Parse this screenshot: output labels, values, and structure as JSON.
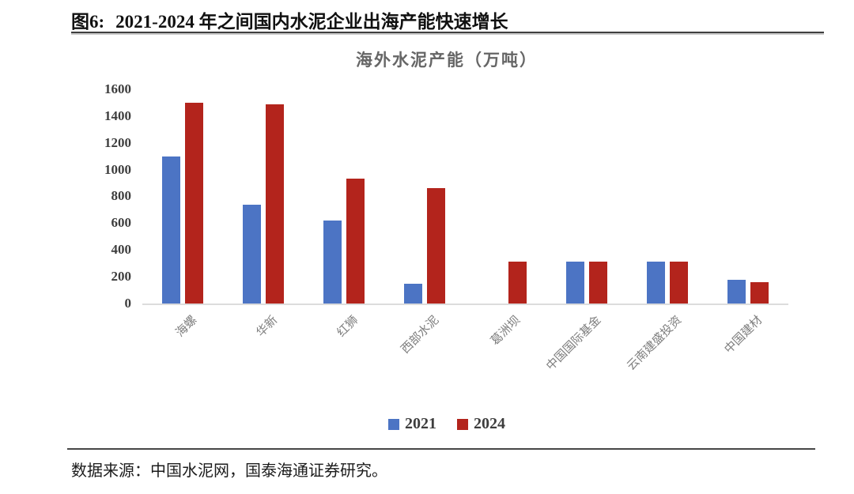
{
  "header": {
    "fig_label": "图6:",
    "title": "2021-2024 年之间国内水泥企业出海产能快速增长"
  },
  "chart_data": {
    "type": "bar",
    "title": "海外水泥产能（万吨）",
    "categories": [
      "海螺",
      "华新",
      "红狮",
      "西部水泥",
      "葛洲坝",
      "中国国际基金",
      "云南建盛投资",
      "中国建材"
    ],
    "series": [
      {
        "name": "2021",
        "color": "#4C74C4",
        "values": [
          1100,
          740,
          620,
          150,
          0,
          310,
          310,
          180
        ]
      },
      {
        "name": "2024",
        "color": "#B3241C",
        "values": [
          1500,
          1490,
          930,
          860,
          310,
          310,
          310,
          160
        ]
      }
    ],
    "ylabel": "",
    "xlabel": "",
    "ylim": [
      0,
      1600
    ],
    "ytick_step": 200,
    "grid": false,
    "legend_position": "bottom",
    "axis_line_color": "#dcdcdc"
  },
  "footer": {
    "source": "数据来源：中国水泥网，国泰海通证券研究。"
  }
}
